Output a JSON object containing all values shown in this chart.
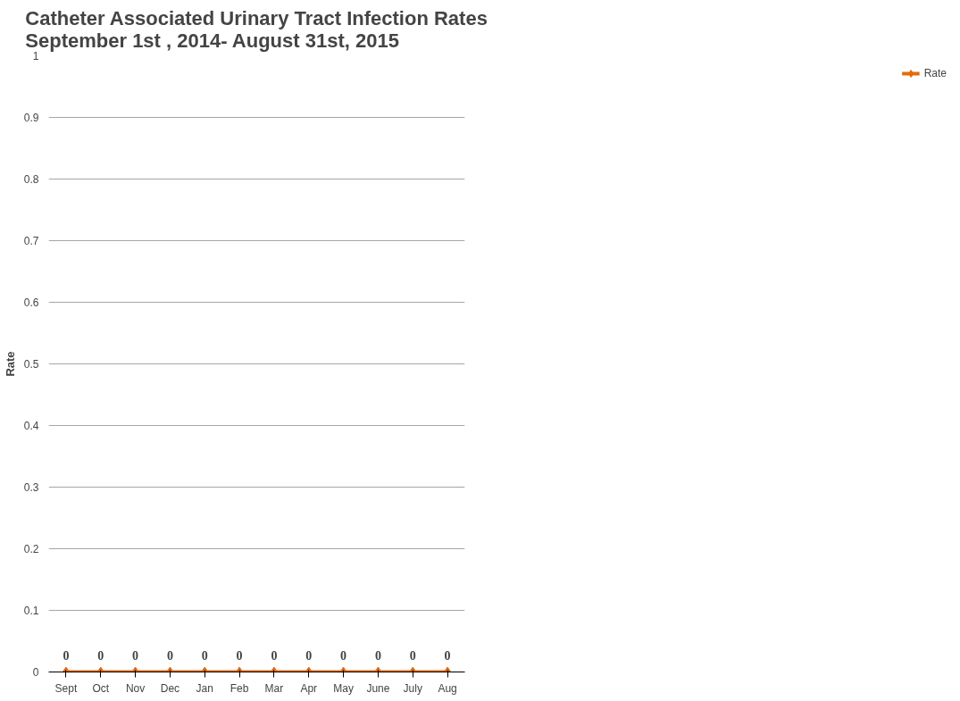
{
  "chart_data": {
    "type": "line",
    "title": "Catheter Associated Urinary Tract Infection Rates\nSeptember 1st , 2014- August 31st, 2015",
    "ylabel": "Rate",
    "categories": [
      "Sept",
      "Oct",
      "Nov",
      "Dec",
      "Jan",
      "Feb",
      "Mar",
      "Apr",
      "May",
      "June",
      "July",
      "Aug"
    ],
    "series": [
      {
        "name": "Rate",
        "color": "#e36c0a",
        "values": [
          0,
          0,
          0,
          0,
          0,
          0,
          0,
          0,
          0,
          0,
          0,
          0
        ]
      }
    ],
    "ylim": [
      0,
      1
    ],
    "yticks": [
      0,
      0.1,
      0.2,
      0.3,
      0.4,
      0.5,
      0.6,
      0.7,
      0.8,
      0.9,
      1
    ],
    "grid": "y",
    "legend": "right",
    "marker": "diamond",
    "line_style": "solid",
    "data_labels": true
  }
}
